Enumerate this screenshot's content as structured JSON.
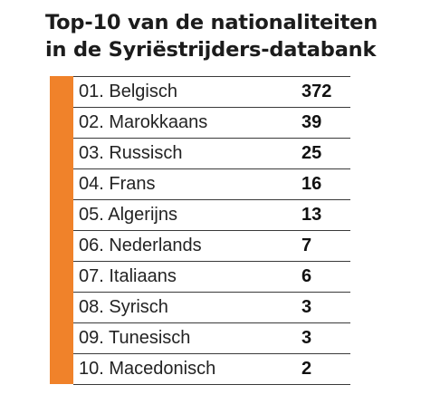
{
  "colors": {
    "accent": "#f0822a",
    "text": "#1c1c1c",
    "rule": "#3a3a3a"
  },
  "title_lines": [
    "Top-10 van de nationaliteiten",
    "in de Syriëstrijders-databank"
  ],
  "chart_data": {
    "type": "table",
    "title": "Top-10 van de nationaliteiten in de Syriëstrijders-databank",
    "rows": [
      {
        "label": "01. Belgisch",
        "value": 372
      },
      {
        "label": "02. Marokkaans",
        "value": 39
      },
      {
        "label": "03. Russisch",
        "value": 25
      },
      {
        "label": "04. Frans",
        "value": 16
      },
      {
        "label": "05. Algerijns",
        "value": 13
      },
      {
        "label": "06. Nederlands",
        "value": 7
      },
      {
        "label": "07. Italiaans",
        "value": 6
      },
      {
        "label": "08. Syrisch",
        "value": 3
      },
      {
        "label": "09. Tunesisch",
        "value": 3
      },
      {
        "label": "10. Macedonisch",
        "value": 2
      }
    ]
  }
}
